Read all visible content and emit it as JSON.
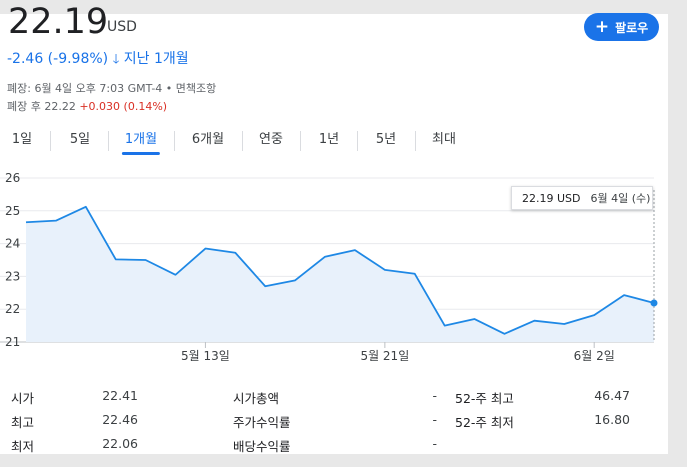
{
  "quote": {
    "price": "22.19",
    "currency": "USD",
    "change": "-2.46 (-9.98%)",
    "period": "지난 1개월",
    "close_info": "폐장: 6월 4일 오후 7:03 GMT-4 • 면책조항",
    "after_label": "폐장 후 22.22",
    "after_change": "+0.030 (0.14%)"
  },
  "follow_button": {
    "label": "팔로우",
    "icon": "plus-icon",
    "color": "#1a73e8"
  },
  "tabs": [
    "1일",
    "5일",
    "1개월",
    "6개월",
    "연중",
    "1년",
    "5년",
    "최대"
  ],
  "active_tab": "1개월",
  "chart_data": {
    "type": "area",
    "title": "",
    "xlabel": "",
    "ylabel": "",
    "ylim": [
      21,
      26
    ],
    "yticks": [
      "21",
      "22",
      "23",
      "24",
      "25",
      "26"
    ],
    "xtick_labels": [
      "5월 13일",
      "5월 21일",
      "6월 2일"
    ],
    "grid": true,
    "line_color": "#1e88e5",
    "fill_color": "#e8f1fb",
    "series": [
      {
        "values": [
          24.65,
          24.7,
          25.12,
          23.52,
          23.5,
          23.05,
          23.85,
          23.72,
          22.7,
          22.88,
          23.6,
          23.8,
          23.2,
          23.08,
          21.5,
          21.7,
          21.25,
          21.65,
          21.55,
          21.82,
          22.43,
          22.19
        ]
      }
    ],
    "tooltip": {
      "price": "22.19 USD",
      "date": "6월 4일 (수)"
    }
  },
  "stats": [
    {
      "label": "시가",
      "value": "22.41"
    },
    {
      "label": "최고",
      "value": "22.46"
    },
    {
      "label": "최저",
      "value": "22.06"
    },
    {
      "label": "시가총액",
      "value": "-"
    },
    {
      "label": "주가수익률",
      "value": "-"
    },
    {
      "label": "배당수익률",
      "value": "-"
    },
    {
      "label": "52-주 최고",
      "value": "46.47"
    },
    {
      "label": "52-주 최저",
      "value": "16.80"
    }
  ]
}
